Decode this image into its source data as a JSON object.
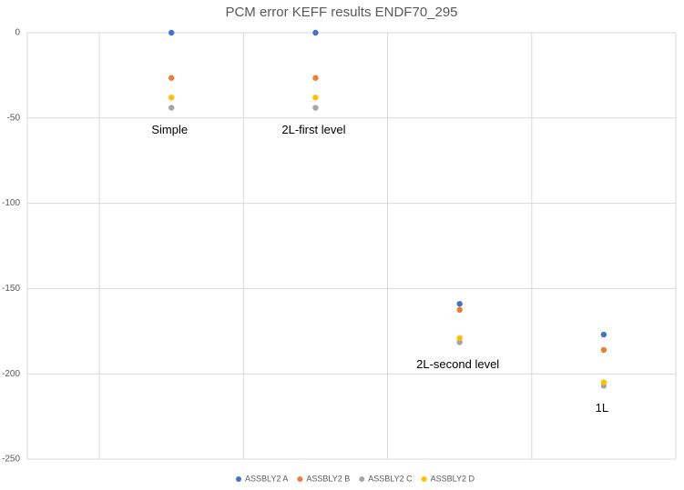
{
  "chart_data": {
    "type": "scatter",
    "title": "PCM error KEFF results ENDF70_295",
    "categories": [
      "Simple",
      "2L-first level",
      "2L-second level",
      "1L"
    ],
    "series": [
      {
        "name": "ASSBLY2 A",
        "color": "#4472c4",
        "values": [
          0,
          0,
          -159,
          -177
        ]
      },
      {
        "name": "ASSBLY2 B",
        "color": "#ed7d31",
        "values": [
          -26.5,
          -26.5,
          -162.5,
          -186
        ]
      },
      {
        "name": "ASSBLY2 C",
        "color": "#a5a5a5",
        "values": [
          -44,
          -44,
          -181.5,
          -207
        ]
      },
      {
        "name": "ASSBLY2 D",
        "color": "#ffc000",
        "values": [
          -38,
          -38,
          -179,
          -205
        ]
      }
    ],
    "ylim": [
      -250,
      0
    ],
    "yticks": [
      0,
      -50,
      -100,
      -150,
      -200,
      -250
    ],
    "grid": true,
    "legend": "bottom"
  }
}
